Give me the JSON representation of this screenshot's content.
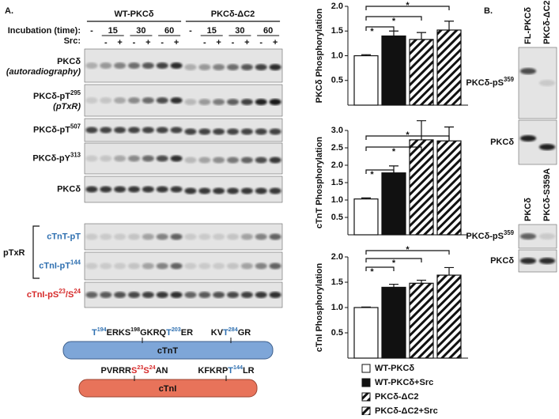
{
  "panel_a": {
    "label": "A.",
    "groups": [
      "WT-PKCδ",
      "PKCδ-ΔC2"
    ],
    "incubation_label": "Incubation (time):",
    "src_label": "Src:",
    "time_labels": [
      "-",
      "15",
      "30",
      "60",
      "-",
      "15",
      "30",
      "60"
    ],
    "src_labels": [
      "-",
      "+",
      "-",
      "+",
      "-",
      "+",
      "-",
      "+",
      "-",
      "+",
      "-",
      "+"
    ],
    "rows": [
      {
        "label": [
          {
            "text": "PKCδ"
          }
        ],
        "note": "(autoradiography)"
      },
      {
        "label": [
          {
            "text": "PKCδ-pT"
          },
          {
            "sup": "295"
          }
        ],
        "note": "(pTxR)"
      },
      {
        "label": [
          {
            "text": "PKCδ-pT"
          },
          {
            "sup": "507"
          }
        ]
      },
      {
        "label": [
          {
            "text": "PKCδ-pY"
          },
          {
            "sup": "313"
          }
        ]
      },
      {
        "label": [
          {
            "text": "PKCδ"
          }
        ]
      },
      {
        "label": [
          {
            "text": "cTnT-pT",
            "color": "#2e6fb0"
          }
        ]
      },
      {
        "label": [
          {
            "text": "cTnI-pT",
            "color": "#2e6fb0"
          },
          {
            "sup": "144",
            "color": "#2e6fb0"
          }
        ]
      },
      {
        "label": [
          {
            "text": "cTnI-pS",
            "color": "#d62a2a"
          },
          {
            "sup": "23",
            "color": "#d62a2a"
          },
          {
            "text": "/S",
            "color": "#d62a2a"
          },
          {
            "sup": "24",
            "color": "#d62a2a"
          }
        ]
      }
    ],
    "bracket_label": "pTxR",
    "ctnt": {
      "name": "cTnT",
      "left": [
        {
          "text": "T",
          "color": "#2e6fb0"
        },
        {
          "sup": "194",
          "color": "#2e6fb0"
        },
        {
          "text": "ERKS"
        },
        {
          "sup": "198"
        },
        {
          "text": "GKRQ"
        },
        {
          "text": "T",
          "color": "#2e6fb0"
        },
        {
          "sup": "203",
          "color": "#2e6fb0"
        },
        {
          "text": "ER"
        }
      ],
      "right": [
        {
          "text": "KV"
        },
        {
          "text": "T",
          "color": "#2e6fb0"
        },
        {
          "sup": "284",
          "color": "#2e6fb0"
        },
        {
          "text": "GR"
        }
      ]
    },
    "ctni": {
      "name": "cTnI",
      "left": [
        {
          "text": "PVRRR"
        },
        {
          "text": "S",
          "color": "#d62a2a"
        },
        {
          "sup": "23",
          "color": "#d62a2a"
        },
        {
          "text": "S",
          "color": "#d62a2a"
        },
        {
          "sup": "24",
          "color": "#d62a2a"
        },
        {
          "text": "AN"
        }
      ],
      "right": [
        {
          "text": "KFKRP"
        },
        {
          "text": "T",
          "color": "#2e6fb0"
        },
        {
          "sup": "144",
          "color": "#2e6fb0"
        },
        {
          "text": "LR"
        }
      ]
    }
  },
  "chart_data": [
    {
      "type": "bar",
      "ylabel": "PKCδ Phosphorylation",
      "values": [
        1.0,
        1.4,
        1.33,
        1.52
      ],
      "errors": [
        0.02,
        0.1,
        0.14,
        0.18
      ],
      "ylim": [
        0,
        2
      ],
      "yticks": [
        0.5,
        {
          "value": 1,
          "label": "1.0"
        },
        1.5,
        {
          "value": 2,
          "label": "2.0"
        }
      ],
      "annotations": [
        "*",
        "*",
        "*"
      ]
    },
    {
      "type": "bar",
      "ylabel": "cTnT Phosphorylation",
      "values": [
        1.03,
        1.78,
        2.73,
        2.7
      ],
      "errors": [
        0.03,
        0.2,
        0.55,
        0.4
      ],
      "ylim": [
        0,
        3
      ],
      "yticks": [
        0.5,
        {
          "value": 1,
          "label": "1.0"
        },
        1.5,
        {
          "value": 2,
          "label": "2.0"
        },
        2.5,
        {
          "value": 3,
          "label": "3.0"
        }
      ],
      "annotations": [
        "*",
        "*",
        "*"
      ]
    },
    {
      "type": "bar",
      "ylabel": "cTnI Phosphorylation",
      "values": [
        1.0,
        1.4,
        1.48,
        1.64
      ],
      "errors": [
        0.01,
        0.06,
        0.06,
        0.15
      ],
      "ylim": [
        0,
        2
      ],
      "yticks": [
        0.5,
        {
          "value": 1,
          "label": "1.0"
        },
        1.5,
        {
          "value": 2,
          "label": "2.0"
        }
      ],
      "annotations": [
        "*",
        "*",
        "*"
      ]
    }
  ],
  "legend": [
    {
      "name": "WT-PKCδ",
      "fill": "white"
    },
    {
      "name": "WT-PKCδ+Src",
      "fill": "black"
    },
    {
      "name": "PKCδ-ΔC2",
      "fill": "hatch"
    },
    {
      "name": "PKCδ-ΔC2+Src",
      "fill": "hatch"
    }
  ],
  "panel_b": {
    "label": "B.",
    "top_columns": [
      "FL-PKCδ",
      "PKCδ-ΔC2"
    ],
    "top_rows": [
      [
        {
          "text": "PKCδ-pS"
        },
        {
          "sup": "359"
        }
      ],
      [
        {
          "text": "PKCδ"
        }
      ]
    ],
    "bottom_columns": [
      "PKCδ",
      "PKCδ-S359A"
    ],
    "bottom_rows": [
      [
        {
          "text": "PKCδ-pS"
        },
        {
          "sup": "359"
        }
      ],
      [
        {
          "text": "PKCδ"
        }
      ]
    ]
  }
}
